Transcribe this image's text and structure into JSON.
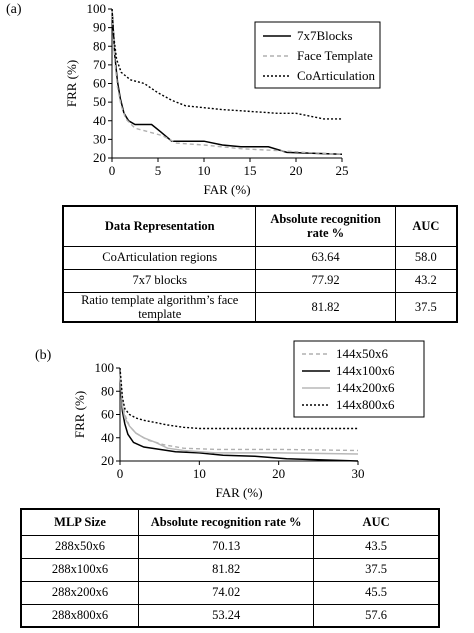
{
  "panels": {
    "a": "(a)",
    "b": "(b)"
  },
  "chart_data": [
    {
      "type": "line",
      "panel": "(a)",
      "xlabel": "FAR (%)",
      "ylabel": "FRR (%)",
      "xlim": [
        0,
        25
      ],
      "ylim": [
        20,
        100
      ],
      "xticks": [
        0,
        5,
        10,
        15,
        20,
        25
      ],
      "yticks": [
        20,
        30,
        40,
        50,
        60,
        70,
        80,
        90,
        100
      ],
      "grid": false,
      "legend": "top-right",
      "series": [
        {
          "name": "7x7Blocks",
          "color": "#000000",
          "style": "solid",
          "x": [
            0,
            0.3,
            0.6,
            0.9,
            1.3,
            1.8,
            2.5,
            4.3,
            5.3,
            6.5,
            10,
            12,
            14,
            17,
            19,
            25
          ],
          "y": [
            100,
            75,
            61,
            52,
            44,
            40,
            38,
            38,
            34,
            29,
            29,
            27,
            26,
            26,
            23,
            22
          ]
        },
        {
          "name": "Face Template",
          "color": "#b0b0b0",
          "style": "dashed",
          "x": [
            0,
            0.3,
            0.6,
            1.0,
            1.5,
            2.5,
            4.0,
            5.5,
            7.0,
            10,
            14,
            18,
            21,
            25
          ],
          "y": [
            100,
            72,
            58,
            48,
            41,
            36,
            34,
            32,
            28,
            27,
            25,
            24,
            23,
            22
          ]
        },
        {
          "name": "CoArticulation",
          "color": "#000000",
          "style": "dotted",
          "x": [
            0,
            0.2,
            0.5,
            1.0,
            2.0,
            3.5,
            5.0,
            6.5,
            8.0,
            10,
            12,
            15,
            18,
            20,
            23,
            25
          ],
          "y": [
            100,
            85,
            73,
            66,
            62,
            60,
            55,
            51,
            48,
            47,
            46,
            45,
            44,
            44,
            41,
            41
          ]
        }
      ]
    },
    {
      "type": "line",
      "panel": "(b)",
      "xlabel": "FAR (%)",
      "ylabel": "FRR (%)",
      "xlim": [
        0,
        30
      ],
      "ylim": [
        20,
        100
      ],
      "xticks": [
        0,
        10,
        20,
        30
      ],
      "yticks": [
        20,
        40,
        60,
        80,
        100
      ],
      "grid": false,
      "legend": "top-right",
      "series": [
        {
          "name": "144x50x6",
          "color": "#b0b0b0",
          "style": "dashed",
          "x": [
            0,
            0.3,
            0.6,
            1.2,
            2.0,
            3.5,
            5.5,
            8,
            12,
            20,
            30
          ],
          "y": [
            95,
            72,
            60,
            50,
            44,
            38,
            34,
            31,
            30,
            30,
            29
          ]
        },
        {
          "name": "144x100x6",
          "color": "#000000",
          "style": "solid",
          "x": [
            0,
            0.3,
            0.6,
            1.0,
            1.7,
            3.0,
            5.0,
            7.0,
            10,
            13,
            17,
            21,
            25,
            30
          ],
          "y": [
            95,
            63,
            52,
            43,
            36,
            32,
            30,
            28,
            27,
            25,
            24,
            22,
            21,
            20
          ]
        },
        {
          "name": "144x200x6",
          "color": "#b8b8b8",
          "style": "solid",
          "x": [
            0,
            0.3,
            0.6,
            1.2,
            2.0,
            3.0,
            4.5,
            6.0,
            8.0,
            12,
            20,
            30
          ],
          "y": [
            95,
            68,
            57,
            50,
            44,
            40,
            36,
            31,
            29,
            27,
            27,
            26
          ]
        },
        {
          "name": "144x800x6",
          "color": "#000000",
          "style": "dotted",
          "x": [
            0,
            0.3,
            0.6,
            1.2,
            2.0,
            3.0,
            4.5,
            6.0,
            8.0,
            10,
            14,
            20,
            30
          ],
          "y": [
            100,
            75,
            65,
            60,
            57,
            55,
            53,
            51,
            49,
            48,
            48,
            48,
            48
          ]
        }
      ]
    }
  ],
  "table_a": {
    "headers": [
      "Data Representation",
      "Absolute recognition rate %",
      "AUC"
    ],
    "rows": [
      [
        "CoArticulation regions",
        "63.64",
        "58.0"
      ],
      [
        "7x7 blocks",
        "77.92",
        "43.2"
      ],
      [
        "Ratio template algorithm’s face template",
        "81.82",
        "37.5"
      ]
    ]
  },
  "table_b": {
    "headers": [
      "MLP Size",
      "Absolute recognition rate %",
      "AUC"
    ],
    "rows": [
      [
        "288x50x6",
        "70.13",
        "43.5"
      ],
      [
        "288x100x6",
        "81.82",
        "37.5"
      ],
      [
        "288x200x6",
        "74.02",
        "45.5"
      ],
      [
        "288x800x6",
        "53.24",
        "57.6"
      ]
    ]
  }
}
